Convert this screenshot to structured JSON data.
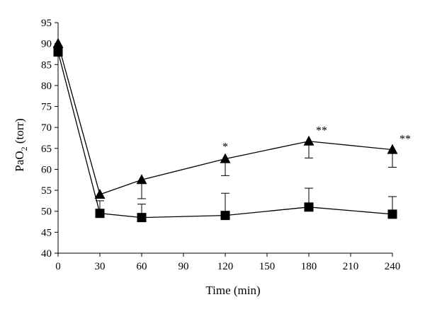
{
  "chart_data": {
    "type": "line",
    "xlabel": "Time (min)",
    "ylabel_main": "PaO",
    "ylabel_sub": "2",
    "ylabel_unit": " (torr)",
    "xlim": [
      0,
      240
    ],
    "ylim": [
      40,
      95
    ],
    "x_ticks": [
      0,
      30,
      60,
      90,
      120,
      150,
      180,
      210,
      240
    ],
    "y_ticks": [
      40,
      45,
      50,
      55,
      60,
      65,
      70,
      75,
      80,
      85,
      90,
      95
    ],
    "grid": false,
    "series": [
      {
        "marker": "triangle",
        "points": [
          {
            "x": 0,
            "y": 90
          },
          {
            "x": 30,
            "y": 54
          },
          {
            "x": 60,
            "y": 57.5
          },
          {
            "x": 120,
            "y": 62.5
          },
          {
            "x": 180,
            "y": 66.7
          },
          {
            "x": 240,
            "y": 64.7
          }
        ],
        "error_minus": [
          0,
          0,
          4.5,
          4,
          4,
          4.2
        ]
      },
      {
        "marker": "square",
        "points": [
          {
            "x": 0,
            "y": 88
          },
          {
            "x": 30,
            "y": 49.5
          },
          {
            "x": 60,
            "y": 48.5
          },
          {
            "x": 120,
            "y": 49
          },
          {
            "x": 180,
            "y": 51
          },
          {
            "x": 240,
            "y": 49.3
          }
        ],
        "error_plus": [
          0,
          3,
          3.2,
          5.3,
          4.5,
          4.2
        ]
      }
    ],
    "annotations": [
      {
        "x": 120,
        "y": 62.5,
        "text": "*"
      },
      {
        "x": 180,
        "y": 66.7,
        "text": "**"
      },
      {
        "x": 240,
        "y": 64.7,
        "text": "**"
      }
    ],
    "colors": {
      "line": "#000000",
      "marker": "#000000"
    }
  }
}
